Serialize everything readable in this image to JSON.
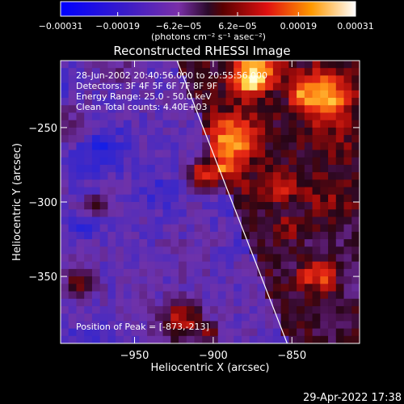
{
  "chart_data": {
    "type": "heatmap",
    "title": "Reconstructed RHESSI Image",
    "xlabel": "Heliocentric X (arcsec)",
    "ylabel": "Heliocentric Y (arcsec)",
    "xlim": [
      -997,
      -807
    ],
    "ylim": [
      -395,
      -205
    ],
    "x_ticks": [
      -950,
      -900,
      -850
    ],
    "x_tick_labels": [
      "−950",
      "−900",
      "−850"
    ],
    "y_ticks": [
      -250,
      -300,
      -350
    ],
    "y_tick_labels": [
      "−250",
      "−300",
      "−350"
    ],
    "colorbar": {
      "min": -0.00031,
      "max": 0.00031,
      "ticks": [
        -0.00031,
        -0.00019,
        -6.2e-05,
        6.2e-05,
        0.00019,
        0.00031
      ],
      "tick_labels": [
        "−0.00031",
        "−0.00019",
        "−6.2e−05",
        "6.2e−05",
        "0.00019",
        "0.00031"
      ],
      "units_label": "(photons cm⁻² s⁻¹ asec⁻²)"
    },
    "annotations": [
      "28-Jun-2002 20:40:56.000 to 20:55:56.000",
      "Detectors: 3F 4F 5F 6F 7F 8F 9F",
      "Energy Range: 25.0 - 50.0 keV",
      "Clean    Total counts: 4.40E+03"
    ],
    "peak_label": "Position of Peak = [-873,-213]",
    "peak": [
      -873,
      -213
    ],
    "limb_line": [
      [
        -923,
        -205
      ],
      [
        -853,
        -395
      ]
    ],
    "seed": 7
  },
  "footer": {
    "timestamp": "29-Apr-2022 17:38"
  }
}
